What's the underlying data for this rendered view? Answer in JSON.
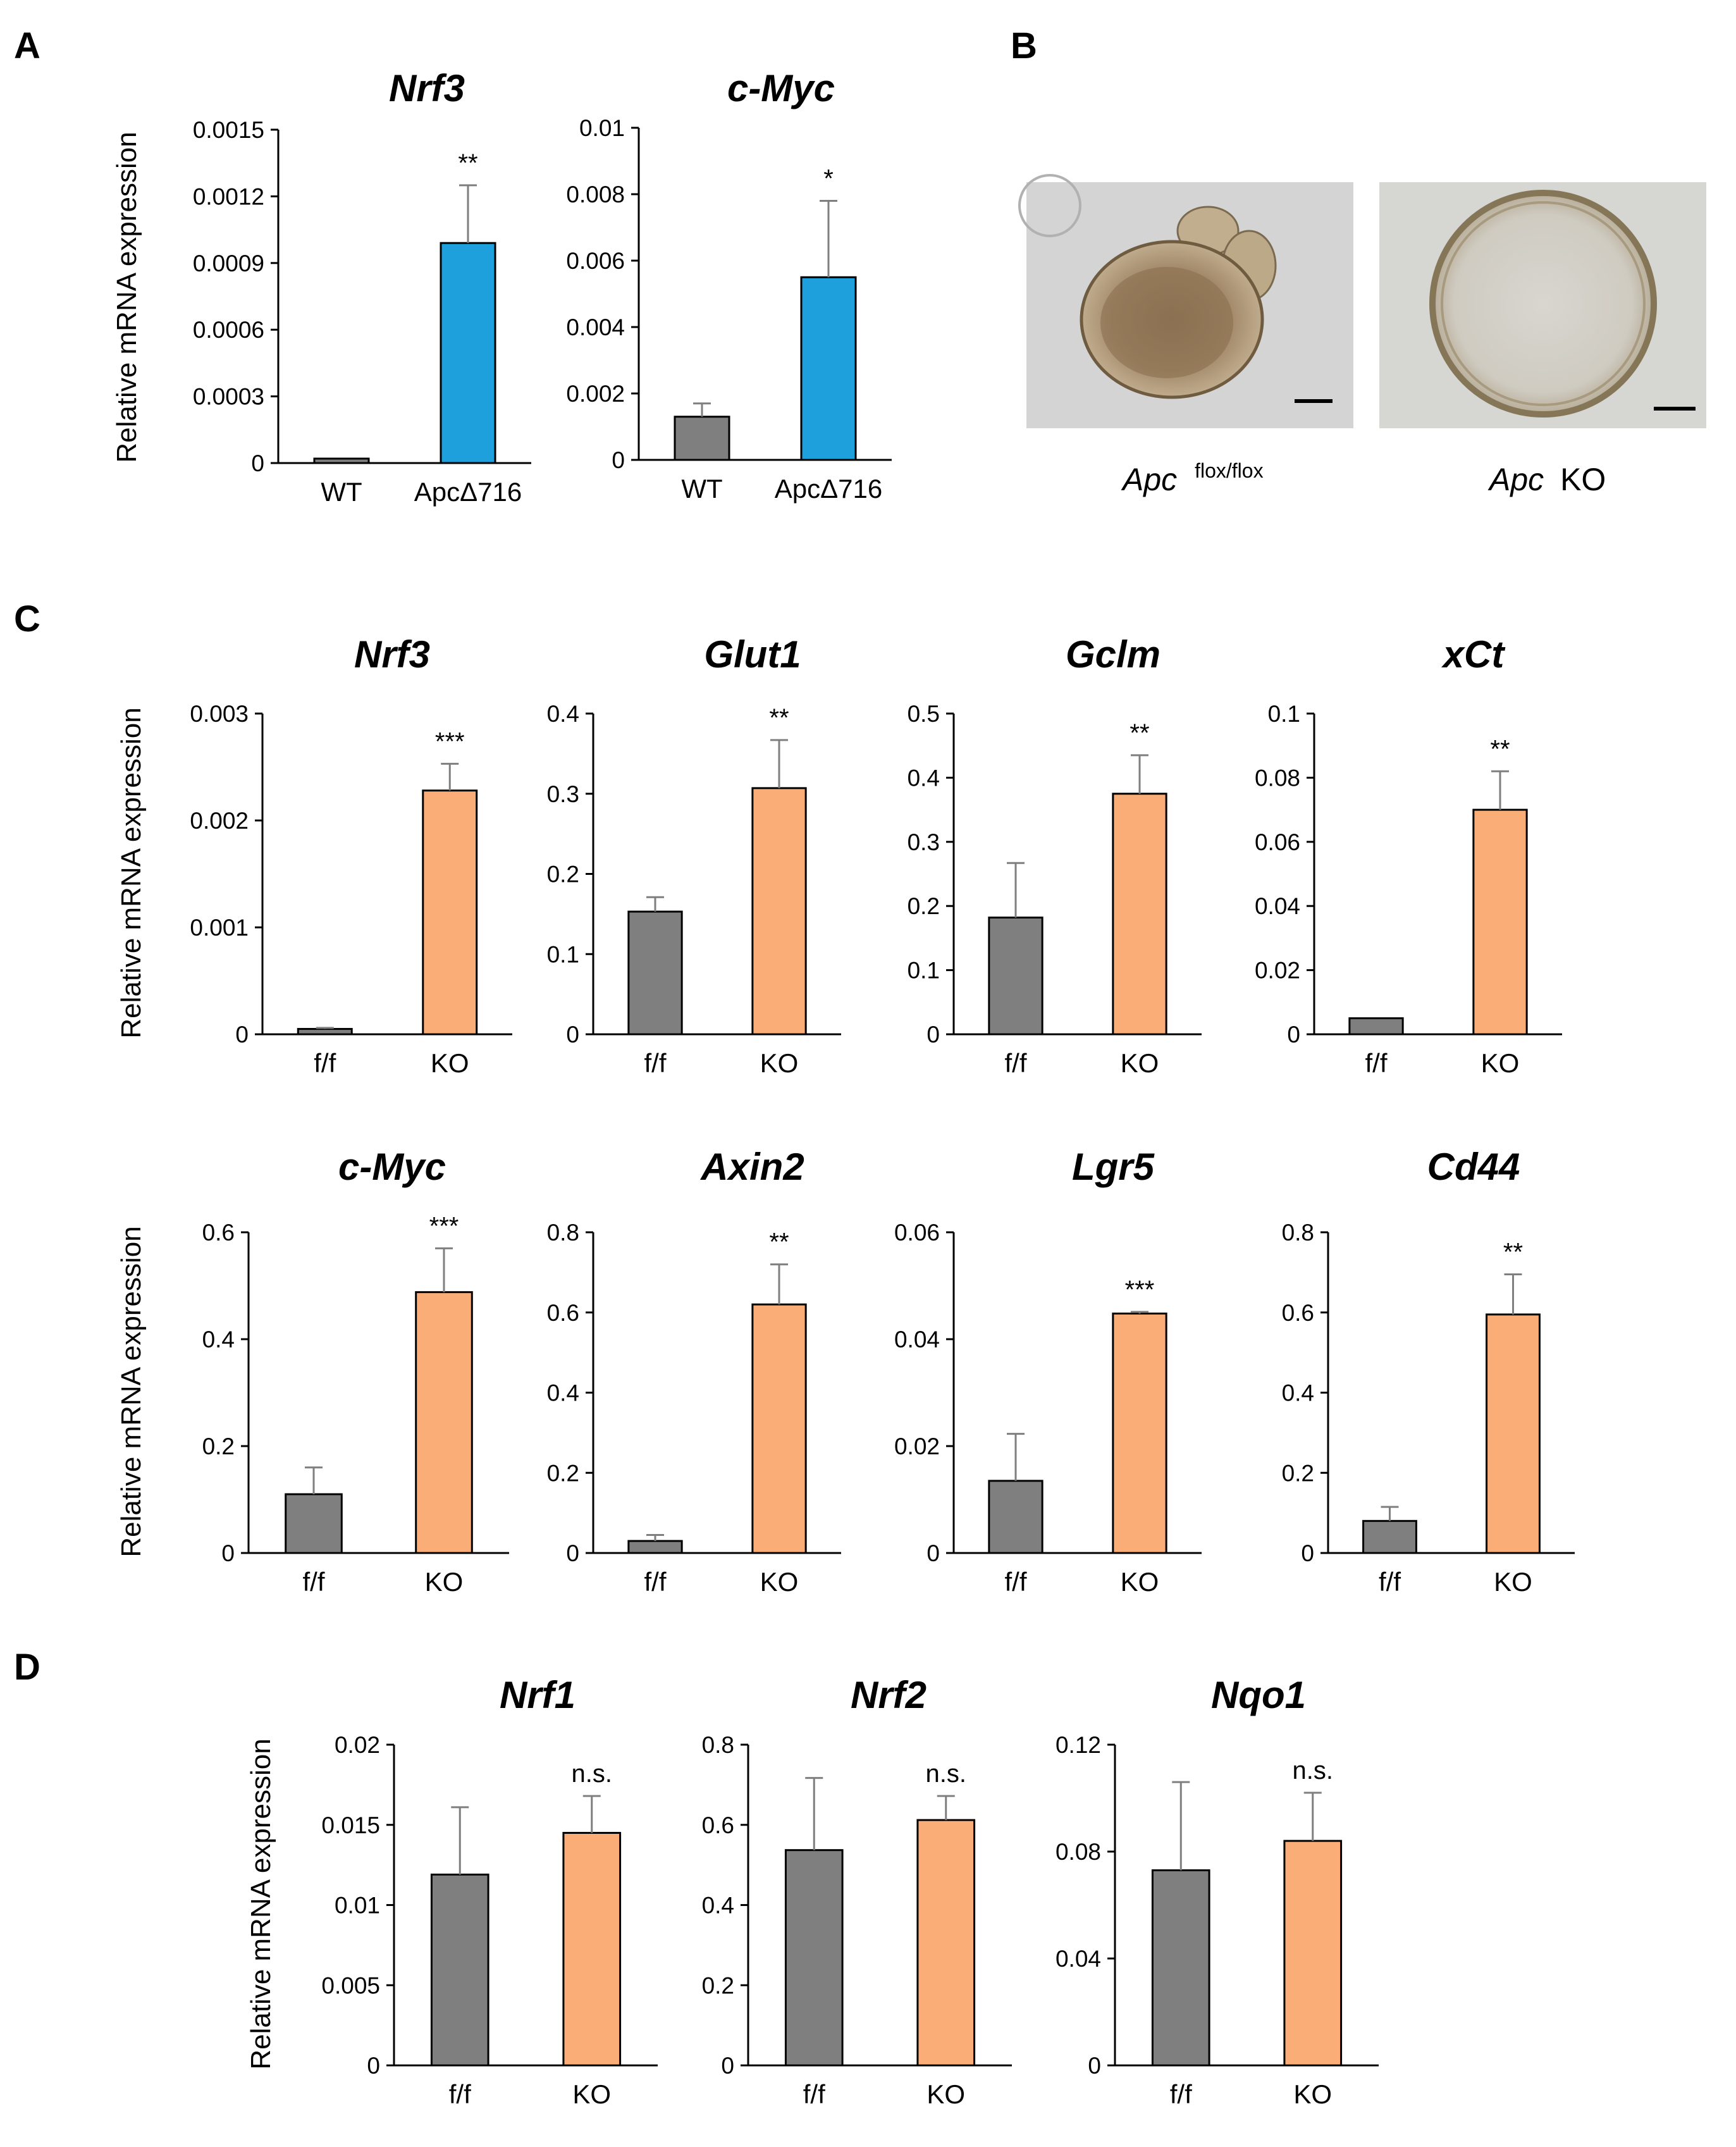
{
  "colors": {
    "wt_bar": "#7f7f7f",
    "apc_bar": "#1da0db",
    "ko_bar": "#fbad78",
    "axis": "#000000"
  },
  "panels": {
    "A": "A",
    "B": "B",
    "C": "C",
    "D": "D"
  },
  "ylabel": "Relative mRNA expression",
  "panel_b": {
    "left_caption_gene": "Apc",
    "left_caption_sup": "flox/flox",
    "right_caption_gene": "Apc",
    "right_caption_suffix": "KO"
  },
  "chart_data": [
    {
      "id": "A-Nrf3",
      "type": "bar",
      "title": "Nrf3",
      "ylabel": "Relative mRNA expression",
      "categories": [
        "WT",
        "ApcΔ716"
      ],
      "values": [
        2e-05,
        0.00099
      ],
      "errors": [
        0.0,
        0.00026
      ],
      "ylim": [
        0,
        0.0015
      ],
      "yticks": [
        0,
        0.0003,
        0.0006,
        0.0009,
        0.0012,
        0.0015
      ],
      "ytick_labels": [
        "0",
        "0.0003",
        "0.0006",
        "0.0009",
        "0.0012",
        "0.0015"
      ],
      "significance": [
        "",
        "**"
      ],
      "colors": [
        "#7f7f7f",
        "#1da0db"
      ]
    },
    {
      "id": "A-cMyc",
      "type": "bar",
      "title": "c-Myc",
      "ylabel": "",
      "categories": [
        "WT",
        "ApcΔ716"
      ],
      "values": [
        0.0013,
        0.0055
      ],
      "errors": [
        0.0004,
        0.0023
      ],
      "ylim": [
        0,
        0.01
      ],
      "yticks": [
        0,
        0.002,
        0.004,
        0.006,
        0.008,
        0.01
      ],
      "ytick_labels": [
        "0",
        "0.002",
        "0.004",
        "0.006",
        "0.008",
        "0.01"
      ],
      "significance": [
        "",
        "*"
      ],
      "colors": [
        "#7f7f7f",
        "#1da0db"
      ]
    },
    {
      "id": "C-Nrf3",
      "type": "bar",
      "title": "Nrf3",
      "ylabel": "Relative mRNA expression",
      "categories": [
        "f/f",
        "KO"
      ],
      "values": [
        5e-05,
        0.00228
      ],
      "errors": [
        1e-05,
        0.00025
      ],
      "ylim": [
        0,
        0.003
      ],
      "yticks": [
        0,
        0.001,
        0.002,
        0.003
      ],
      "ytick_labels": [
        "0",
        "0.001",
        "0.002",
        "0.003"
      ],
      "significance": [
        "",
        "***"
      ],
      "colors": [
        "#7f7f7f",
        "#fbad78"
      ]
    },
    {
      "id": "C-Glut1",
      "type": "bar",
      "title": "Glut1",
      "ylabel": "",
      "categories": [
        "f/f",
        "KO"
      ],
      "values": [
        0.153,
        0.307
      ],
      "errors": [
        0.018,
        0.06
      ],
      "ylim": [
        0,
        0.4
      ],
      "yticks": [
        0,
        0.1,
        0.2,
        0.3,
        0.4
      ],
      "ytick_labels": [
        "0",
        "0.1",
        "0.2",
        "0.3",
        "0.4"
      ],
      "significance": [
        "",
        "**"
      ],
      "colors": [
        "#7f7f7f",
        "#fbad78"
      ]
    },
    {
      "id": "C-Gclm",
      "type": "bar",
      "title": "Gclm",
      "ylabel": "",
      "categories": [
        "f/f",
        "KO"
      ],
      "values": [
        0.182,
        0.375
      ],
      "errors": [
        0.085,
        0.06
      ],
      "ylim": [
        0,
        0.5
      ],
      "yticks": [
        0,
        0.1,
        0.2,
        0.3,
        0.4,
        0.5
      ],
      "ytick_labels": [
        "0",
        "0.1",
        "0.2",
        "0.3",
        "0.4",
        "0.5"
      ],
      "significance": [
        "",
        "**"
      ],
      "colors": [
        "#7f7f7f",
        "#fbad78"
      ]
    },
    {
      "id": "C-xCt",
      "type": "bar",
      "title": "xCt",
      "ylabel": "",
      "categories": [
        "f/f",
        "KO"
      ],
      "values": [
        0.005,
        0.07
      ],
      "errors": [
        0.0,
        0.012
      ],
      "ylim": [
        0,
        0.1
      ],
      "yticks": [
        0,
        0.02,
        0.04,
        0.06,
        0.08,
        0.1
      ],
      "ytick_labels": [
        "0",
        "0.02",
        "0.04",
        "0.06",
        "0.08",
        "0.1"
      ],
      "significance": [
        "",
        "**"
      ],
      "colors": [
        "#7f7f7f",
        "#fbad78"
      ]
    },
    {
      "id": "C-cMyc",
      "type": "bar",
      "title": "c-Myc",
      "ylabel": "Relative mRNA expression",
      "categories": [
        "f/f",
        "KO"
      ],
      "values": [
        0.11,
        0.488
      ],
      "errors": [
        0.05,
        0.082
      ],
      "ylim": [
        0,
        0.6
      ],
      "yticks": [
        0,
        0.2,
        0.4,
        0.6
      ],
      "ytick_labels": [
        "0",
        "0.2",
        "0.4",
        "0.6"
      ],
      "significance": [
        "",
        "***"
      ],
      "colors": [
        "#7f7f7f",
        "#fbad78"
      ]
    },
    {
      "id": "C-Axin2",
      "type": "bar",
      "title": "Axin2",
      "ylabel": "",
      "categories": [
        "f/f",
        "KO"
      ],
      "values": [
        0.03,
        0.62
      ],
      "errors": [
        0.015,
        0.1
      ],
      "ylim": [
        0,
        0.8
      ],
      "yticks": [
        0,
        0.2,
        0.4,
        0.6,
        0.8
      ],
      "ytick_labels": [
        "0",
        "0.2",
        "0.4",
        "0.6",
        "0.8"
      ],
      "significance": [
        "",
        "**"
      ],
      "colors": [
        "#7f7f7f",
        "#fbad78"
      ]
    },
    {
      "id": "C-Lgr5",
      "type": "bar",
      "title": "Lgr5",
      "ylabel": "",
      "categories": [
        "f/f",
        "KO"
      ],
      "values": [
        0.0135,
        0.0448
      ],
      "errors": [
        0.0088,
        0.0003
      ],
      "ylim": [
        0,
        0.06
      ],
      "yticks": [
        0,
        0.02,
        0.04,
        0.06
      ],
      "ytick_labels": [
        "0",
        "0.02",
        "0.04",
        "0.06"
      ],
      "significance": [
        "",
        "***"
      ],
      "colors": [
        "#7f7f7f",
        "#fbad78"
      ]
    },
    {
      "id": "C-Cd44",
      "type": "bar",
      "title": "Cd44",
      "ylabel": "",
      "categories": [
        "f/f",
        "KO"
      ],
      "values": [
        0.08,
        0.595
      ],
      "errors": [
        0.035,
        0.1
      ],
      "ylim": [
        0,
        0.8
      ],
      "yticks": [
        0,
        0.2,
        0.4,
        0.6,
        0.8
      ],
      "ytick_labels": [
        "0",
        "0.2",
        "0.4",
        "0.6",
        "0.8"
      ],
      "significance": [
        "",
        "**"
      ],
      "colors": [
        "#7f7f7f",
        "#fbad78"
      ]
    },
    {
      "id": "D-Nrf1",
      "type": "bar",
      "title": "Nrf1",
      "ylabel": "Relative mRNA expression",
      "categories": [
        "f/f",
        "KO"
      ],
      "values": [
        0.0119,
        0.0145
      ],
      "errors": [
        0.0042,
        0.0023
      ],
      "ylim": [
        0,
        0.02
      ],
      "yticks": [
        0,
        0.005,
        0.01,
        0.015,
        0.02
      ],
      "ytick_labels": [
        "0",
        "0.005",
        "0.01",
        "0.015",
        "0.02"
      ],
      "significance": [
        "",
        "n.s."
      ],
      "colors": [
        "#7f7f7f",
        "#fbad78"
      ]
    },
    {
      "id": "D-Nrf2",
      "type": "bar",
      "title": "Nrf2",
      "ylabel": "",
      "categories": [
        "f/f",
        "KO"
      ],
      "values": [
        0.537,
        0.612
      ],
      "errors": [
        0.18,
        0.06
      ],
      "ylim": [
        0,
        0.8
      ],
      "yticks": [
        0,
        0.2,
        0.4,
        0.6,
        0.8
      ],
      "ytick_labels": [
        "0",
        "0.2",
        "0.4",
        "0.6",
        "0.8"
      ],
      "significance": [
        "",
        "n.s."
      ],
      "colors": [
        "#7f7f7f",
        "#fbad78"
      ]
    },
    {
      "id": "D-Nqo1",
      "type": "bar",
      "title": "Nqo1",
      "ylabel": "",
      "categories": [
        "f/f",
        "KO"
      ],
      "values": [
        0.073,
        0.084
      ],
      "errors": [
        0.033,
        0.018
      ],
      "ylim": [
        0,
        0.12
      ],
      "yticks": [
        0,
        0.04,
        0.08,
        0.12
      ],
      "ytick_labels": [
        "0",
        "0.04",
        "0.08",
        "0.12"
      ],
      "significance": [
        "",
        "n.s."
      ],
      "colors": [
        "#7f7f7f",
        "#fbad78"
      ]
    }
  ]
}
